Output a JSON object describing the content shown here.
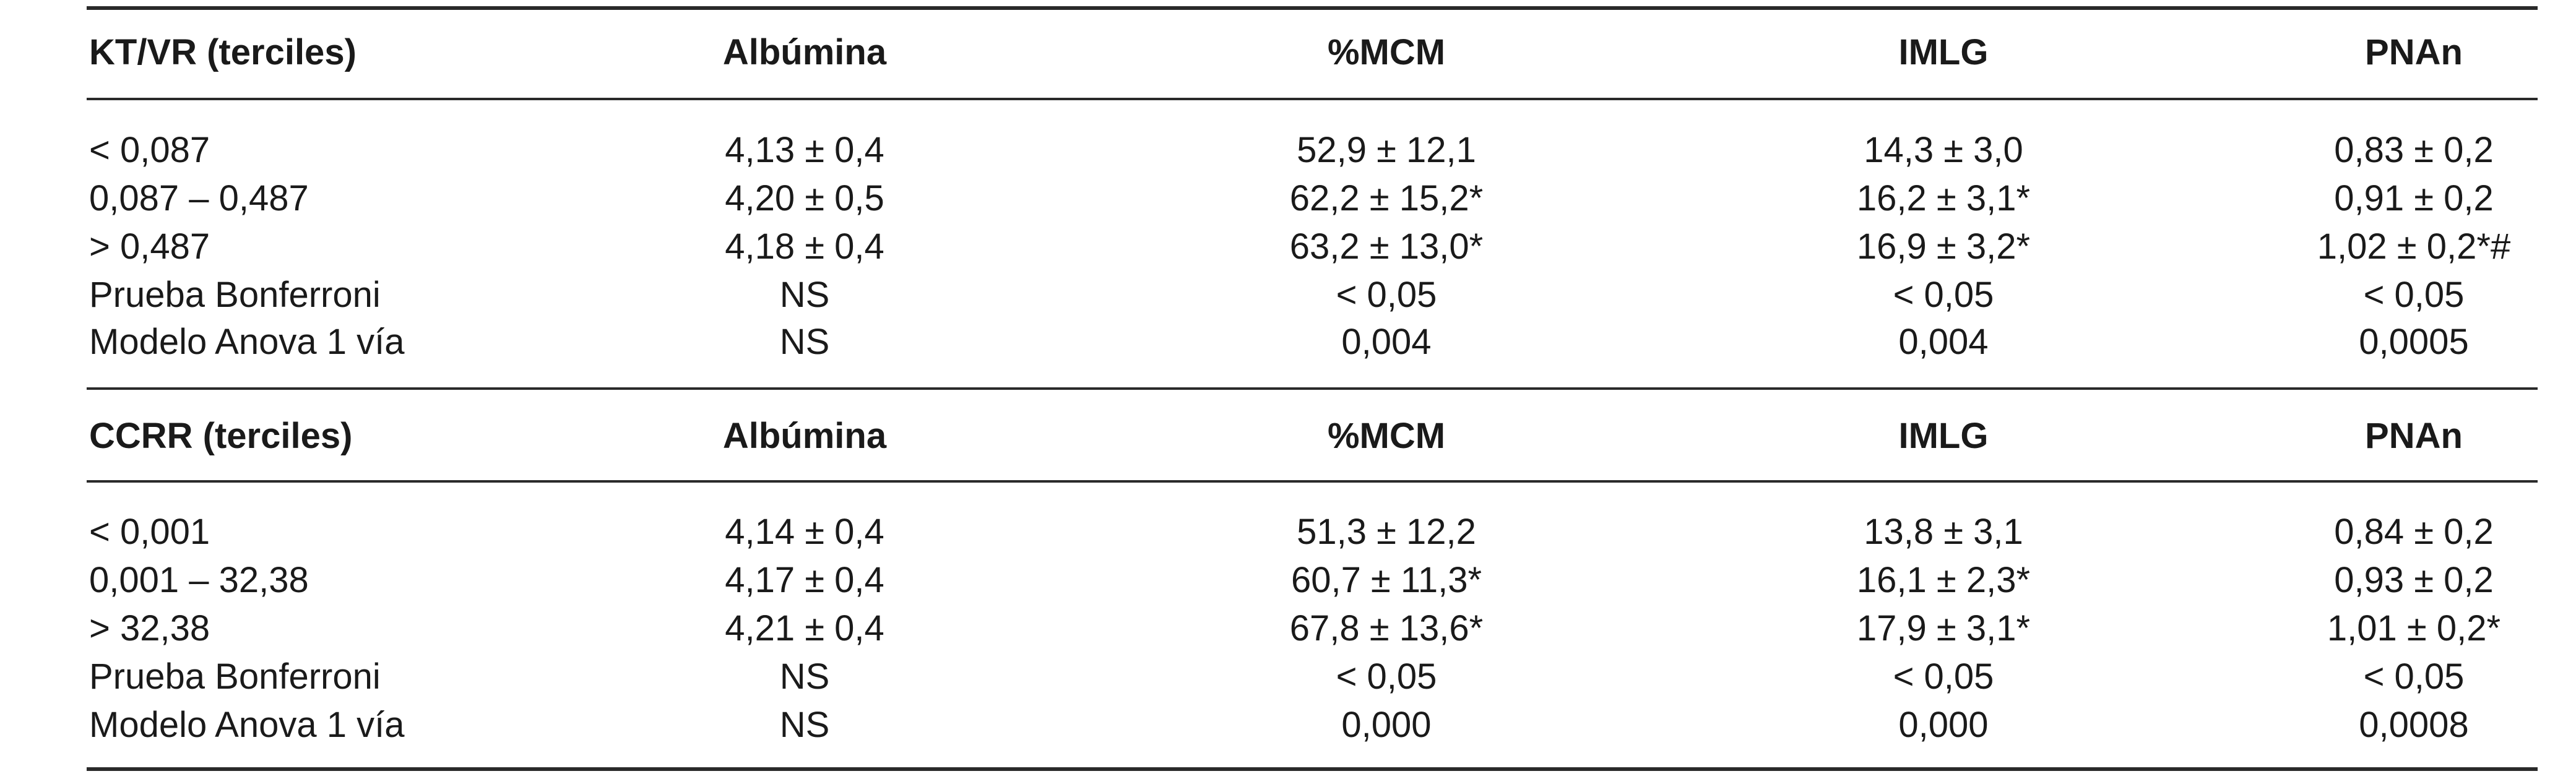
{
  "sections": [
    {
      "header": [
        "KT/VR (terciles)",
        "Albúmina",
        "%MCM",
        "IMLG",
        "PNAn"
      ],
      "rows": [
        [
          "< 0,087",
          "4,13 ± 0,4",
          "52,9 ± 12,1",
          "14,3 ± 3,0",
          "0,83 ± 0,2"
        ],
        [
          "0,087 – 0,487",
          "4,20 ± 0,5",
          "62,2 ± 15,2*",
          "16,2 ± 3,1*",
          "0,91 ± 0,2"
        ],
        [
          "> 0,487",
          "4,18 ± 0,4",
          "63,2 ± 13,0*",
          "16,9 ± 3,2*",
          "1,02 ± 0,2*#"
        ],
        [
          "Prueba Bonferroni",
          "NS",
          "< 0,05",
          "< 0,05",
          "< 0,05"
        ],
        [
          "Modelo Anova 1 vía",
          "NS",
          "0,004",
          "0,004",
          "0,0005"
        ]
      ]
    },
    {
      "header": [
        "CCRR (terciles)",
        "Albúmina",
        "%MCM",
        "IMLG",
        "PNAn"
      ],
      "rows": [
        [
          "< 0,001",
          "4,14 ± 0,4",
          "51,3 ± 12,2",
          "13,8 ± 3,1",
          "0,84 ± 0,2"
        ],
        [
          "0,001 – 32,38",
          "4,17 ± 0,4",
          "60,7 ± 11,3*",
          "16,1 ± 2,3*",
          "0,93 ± 0,2"
        ],
        [
          "> 32,38",
          "4,21 ± 0,4",
          "67,8 ± 13,6*",
          "17,9 ± 3,1*",
          "1,01 ± 0,2*"
        ],
        [
          "Prueba Bonferroni",
          "NS",
          "< 0,05",
          "< 0,05",
          "< 0,05"
        ],
        [
          "Modelo Anova 1 vía",
          "NS",
          "0,000",
          "0,000",
          "0,0008"
        ]
      ]
    }
  ]
}
